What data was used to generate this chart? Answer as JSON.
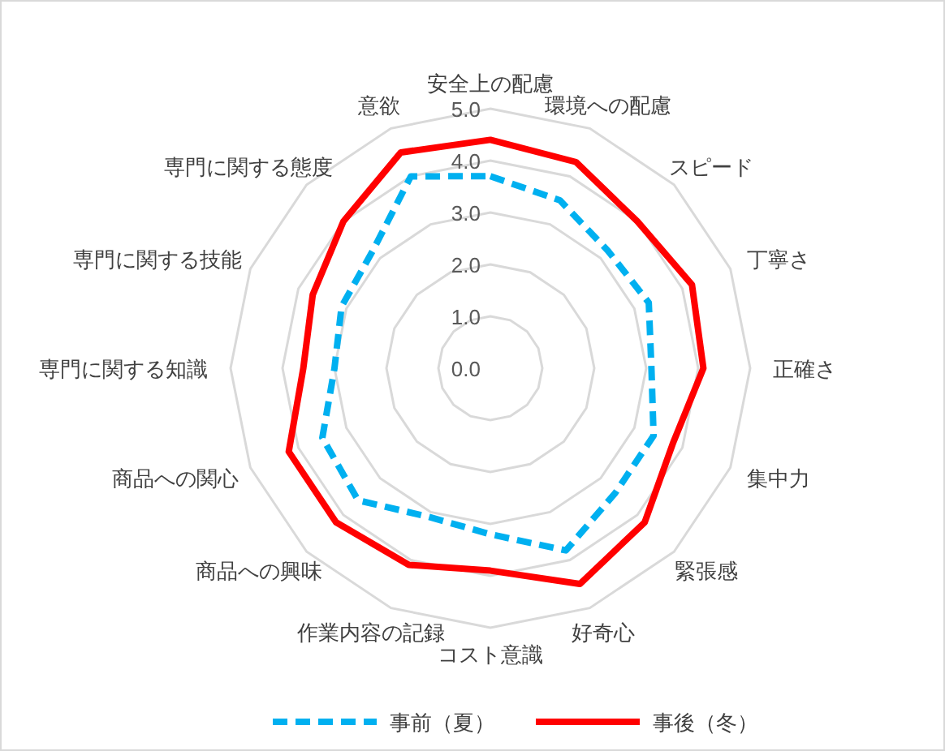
{
  "chart_data": {
    "type": "radar",
    "categories": [
      "安全上の配慮",
      "環境への配慮",
      "スピード",
      "丁寧さ",
      "正確さ",
      "集中力",
      "緊張感",
      "好奇心",
      "コスト意識",
      "作業内容の記録",
      "商品への興味",
      "商品への関心",
      "専門に関する知識",
      "専門に関する技能",
      "専門に関する態度",
      "意欲"
    ],
    "series": [
      {
        "name": "事前（夏）",
        "color": "#00b0f0",
        "line_style": "dashed",
        "values": [
          3.7,
          3.5,
          3.2,
          3.3,
          3.1,
          3.4,
          3.4,
          3.8,
          3.2,
          3.1,
          3.6,
          3.5,
          3.0,
          3.1,
          3.2,
          4.0
        ]
      },
      {
        "name": "事後（冬）",
        "color": "#ff0000",
        "line_style": "solid",
        "values": [
          4.4,
          4.3,
          4.0,
          4.2,
          4.1,
          3.8,
          4.2,
          4.5,
          3.9,
          4.1,
          4.2,
          4.2,
          3.6,
          3.7,
          4.0,
          4.5
        ]
      }
    ],
    "ylim": [
      0,
      5
    ],
    "yticks": [
      {
        "value": 0,
        "label": "0.0"
      },
      {
        "value": 1,
        "label": "1.0"
      },
      {
        "value": 2,
        "label": "2.0"
      },
      {
        "value": 3,
        "label": "3.0"
      },
      {
        "value": 4,
        "label": "4.0"
      },
      {
        "value": 5,
        "label": "5.0"
      }
    ],
    "grid": true,
    "legend": "bottom"
  }
}
